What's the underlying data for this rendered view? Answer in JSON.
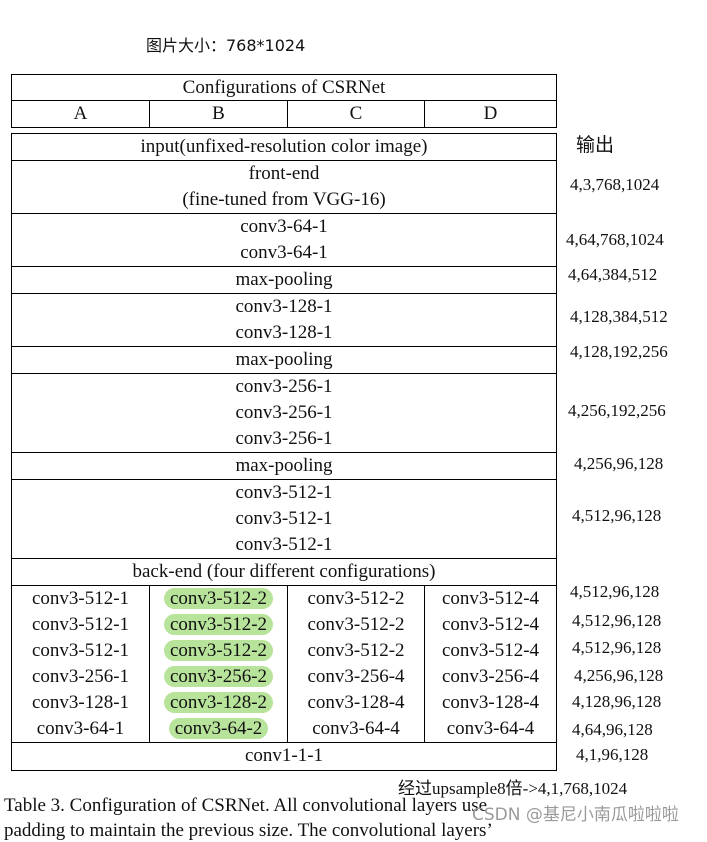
{
  "image_size_note": "图片大小：768*1024",
  "table": {
    "title": "Configurations of CSRNet",
    "columns": [
      "A",
      "B",
      "C",
      "D"
    ],
    "input": "input(unfixed-resolution color image)",
    "frontend": [
      "front-end",
      "(fine-tuned from VGG-16)"
    ],
    "blocks": [
      [
        "conv3-64-1",
        "conv3-64-1"
      ],
      [
        "max-pooling"
      ],
      [
        "conv3-128-1",
        "conv3-128-1"
      ],
      [
        "max-pooling"
      ],
      [
        "conv3-256-1",
        "conv3-256-1",
        "conv3-256-1"
      ],
      [
        "max-pooling"
      ],
      [
        "conv3-512-1",
        "conv3-512-1",
        "conv3-512-1"
      ]
    ],
    "backend_label": "back-end (four different configurations)",
    "backend_rows": [
      [
        "conv3-512-1",
        "conv3-512-2",
        "conv3-512-2",
        "conv3-512-4"
      ],
      [
        "conv3-512-1",
        "conv3-512-2",
        "conv3-512-2",
        "conv3-512-4"
      ],
      [
        "conv3-512-1",
        "conv3-512-2",
        "conv3-512-2",
        "conv3-512-4"
      ],
      [
        "conv3-256-1",
        "conv3-256-2",
        "conv3-256-4",
        "conv3-256-4"
      ],
      [
        "conv3-128-1",
        "conv3-128-2",
        "conv3-128-4",
        "conv3-128-4"
      ],
      [
        "conv3-64-1",
        "conv3-64-2",
        "conv3-64-4",
        "conv3-64-4"
      ]
    ],
    "final": "conv1-1-1"
  },
  "outputs": {
    "header": "输出",
    "values": [
      "4,3,768,1024",
      "4,64,768,1024",
      "4,64,384,512",
      "4,128,384,512",
      "4,128,192,256",
      "4,256,192,256",
      "4,256,96,128",
      "4,512,96,128",
      "4,512,96,128",
      "4,512,96,128",
      "4,512,96,128",
      "4,256,96,128",
      "4,128,96,128",
      "4,64,96,128",
      "4,1,96,128"
    ],
    "upsample_note": "经过upsample8倍->4,1,768,1024"
  },
  "caption": "Table 3. Configuration of CSRNet.  All convolutional layers use",
  "caption_line2": "padding to maintain the previous size.  The convolutional layers’",
  "watermark": "CSDN @基尼小南瓜啦啦啦",
  "highlight_color": "#b8e39a"
}
